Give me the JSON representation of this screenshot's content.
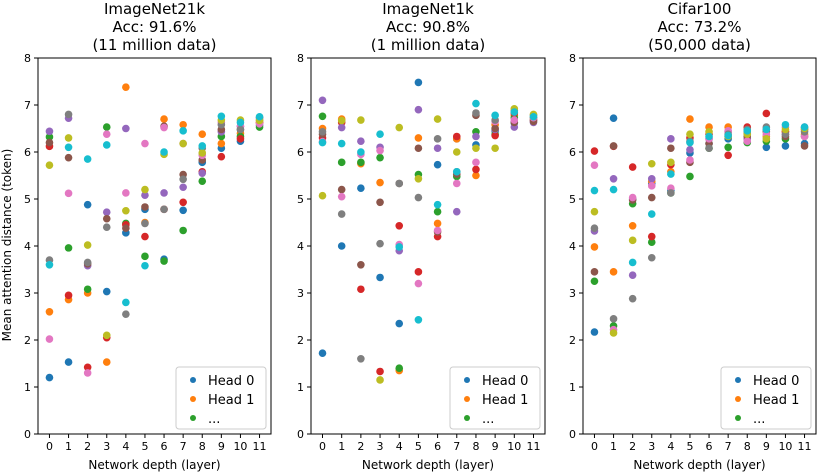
{
  "figure": {
    "ylabel": "Mean attention distance (token)"
  },
  "chart_data": [
    {
      "type": "scatter",
      "title": [
        "ImageNet21k",
        "Acc: 91.6%",
        "(11 million data)"
      ],
      "xlabel": "Network depth (layer)",
      "ylabel": "Mean attention distance (token)",
      "xlim": [
        -0.6,
        11.6
      ],
      "ylim": [
        0,
        8
      ],
      "xticks": [
        0,
        1,
        2,
        3,
        4,
        5,
        6,
        7,
        8,
        9,
        10,
        11
      ],
      "yticks": [
        0,
        1,
        2,
        3,
        4,
        5,
        6,
        7,
        8
      ],
      "legend": {
        "entries": [
          "Head 0",
          "Head 1",
          "..."
        ],
        "placement": "lower-right"
      },
      "series": [
        {
          "name": "Head 0",
          "color": "#1f77b4",
          "values": [
            1.2,
            1.53,
            4.88,
            3.03,
            4.28,
            4.78,
            3.72,
            4.76,
            5.78,
            6.08,
            6.23,
            6.57
          ]
        },
        {
          "name": "Head 1",
          "color": "#ff7f0e",
          "values": [
            2.6,
            2.86,
            3.0,
            1.53,
            7.38,
            4.5,
            6.7,
            6.58,
            6.38,
            6.18,
            6.4,
            6.62
          ]
        },
        {
          "name": "Head 2",
          "color": "#2ca02c",
          "values": [
            6.32,
            3.96,
            3.08,
            6.53,
            4.48,
            3.78,
            3.68,
            4.33,
            5.38,
            6.33,
            6.33,
            6.53
          ]
        },
        {
          "name": "Head 3",
          "color": "#d62728",
          "values": [
            6.12,
            2.95,
            1.42,
            2.05,
            4.45,
            4.2,
            4.78,
            4.93,
            5.58,
            5.9,
            6.28,
            6.63
          ]
        },
        {
          "name": "Head 4",
          "color": "#9467bd",
          "values": [
            6.44,
            6.72,
            3.58,
            4.72,
            6.5,
            5.08,
            5.13,
            5.25,
            5.55,
            6.43,
            6.55,
            6.73
          ]
        },
        {
          "name": "Head 5",
          "color": "#8c564b",
          "values": [
            6.2,
            5.88,
            3.62,
            4.58,
            4.38,
            4.83,
            6.55,
            5.52,
            5.83,
            6.48,
            6.48,
            6.68
          ]
        },
        {
          "name": "Head 6",
          "color": "#e377c2",
          "values": [
            2.02,
            5.12,
            1.3,
            6.38,
            5.13,
            6.18,
            6.52,
            6.18,
            5.93,
            6.63,
            6.55,
            6.6
          ]
        },
        {
          "name": "Head 7",
          "color": "#7f7f7f",
          "values": [
            3.7,
            6.8,
            3.65,
            4.4,
            2.55,
            4.48,
            4.78,
            5.42,
            6.08,
            6.58,
            6.48,
            6.73
          ]
        },
        {
          "name": "Head 8",
          "color": "#bcbd22",
          "values": [
            5.72,
            6.3,
            4.02,
            2.1,
            4.75,
            5.2,
            5.95,
            6.18,
            5.98,
            6.68,
            6.68,
            6.67
          ]
        },
        {
          "name": "Head 9",
          "color": "#17becf",
          "values": [
            3.6,
            6.1,
            5.85,
            6.15,
            2.8,
            3.58,
            6.0,
            6.45,
            6.13,
            6.76,
            6.63,
            6.75
          ]
        }
      ]
    },
    {
      "type": "scatter",
      "title": [
        "ImageNet1k",
        "Acc: 90.8%",
        "(1 million data)"
      ],
      "xlabel": "Network depth (layer)",
      "xlim": [
        -0.6,
        11.6
      ],
      "ylim": [
        0,
        8
      ],
      "xticks": [
        0,
        1,
        2,
        3,
        4,
        5,
        6,
        7,
        8,
        9,
        10,
        11
      ],
      "yticks": [
        0,
        1,
        2,
        3,
        4,
        5,
        6,
        7,
        8
      ],
      "legend": {
        "entries": [
          "Head 0",
          "Head 1",
          "..."
        ],
        "placement": "lower-right"
      },
      "series": [
        {
          "name": "Head 0",
          "color": "#1f77b4",
          "values": [
            1.72,
            4.0,
            5.23,
            3.33,
            2.35,
            7.48,
            5.73,
            6.28,
            6.15,
            6.45,
            6.62,
            6.68
          ]
        },
        {
          "name": "Head 1",
          "color": "#ff7f0e",
          "values": [
            6.5,
            6.7,
            5.75,
            5.35,
            1.35,
            6.3,
            4.48,
            6.28,
            5.5,
            6.58,
            6.78,
            6.73
          ]
        },
        {
          "name": "Head 2",
          "color": "#2ca02c",
          "values": [
            6.76,
            5.78,
            5.78,
            5.88,
            1.4,
            5.52,
            4.73,
            5.48,
            6.43,
            6.38,
            6.73,
            6.73
          ]
        },
        {
          "name": "Head 3",
          "color": "#d62728",
          "values": [
            6.3,
            6.63,
            3.08,
            1.33,
            4.43,
            3.45,
            4.2,
            6.33,
            5.63,
            6.35,
            6.83,
            6.68
          ]
        },
        {
          "name": "Head 4",
          "color": "#9467bd",
          "values": [
            7.1,
            6.52,
            6.23,
            6.1,
            3.9,
            6.9,
            6.08,
            4.73,
            6.33,
            6.48,
            6.53,
            6.63
          ]
        },
        {
          "name": "Head 5",
          "color": "#8c564b",
          "values": [
            6.38,
            5.2,
            3.6,
            4.93,
            5.33,
            6.08,
            4.3,
            5.53,
            6.78,
            6.5,
            6.63,
            6.65
          ]
        },
        {
          "name": "Head 6",
          "color": "#e377c2",
          "values": [
            6.22,
            5.05,
            5.95,
            6.03,
            4.03,
            3.2,
            4.33,
            5.33,
            5.78,
            6.65,
            6.68,
            6.73
          ]
        },
        {
          "name": "Head 7",
          "color": "#7f7f7f",
          "values": [
            6.43,
            4.68,
            1.6,
            4.05,
            5.33,
            5.03,
            6.28,
            5.58,
            6.83,
            6.68,
            6.88,
            6.78
          ]
        },
        {
          "name": "Head 8",
          "color": "#bcbd22",
          "values": [
            5.07,
            6.67,
            6.68,
            1.15,
            6.52,
            5.43,
            6.7,
            6.0,
            6.08,
            6.08,
            6.92,
            6.8
          ]
        },
        {
          "name": "Head 9",
          "color": "#17becf",
          "values": [
            6.2,
            6.18,
            6.0,
            6.38,
            3.98,
            2.43,
            4.88,
            5.58,
            7.03,
            6.78,
            6.85,
            6.75
          ]
        }
      ]
    },
    {
      "type": "scatter",
      "title": [
        "Cifar100",
        "Acc: 73.2%",
        "(50,000 data)"
      ],
      "xlabel": "Network depth (layer)",
      "xlim": [
        -0.6,
        11.6
      ],
      "ylim": [
        0,
        8
      ],
      "xticks": [
        0,
        1,
        2,
        3,
        4,
        5,
        6,
        7,
        8,
        9,
        10,
        11
      ],
      "yticks": [
        0,
        1,
        2,
        3,
        4,
        5,
        6,
        7,
        8
      ],
      "legend": {
        "entries": [
          "Head 0",
          "Head 1",
          "..."
        ],
        "placement": "lower-right"
      },
      "series": [
        {
          "name": "Head 0",
          "color": "#1f77b4",
          "values": [
            2.17,
            6.72,
            5.0,
            5.33,
            5.18,
            5.98,
            6.18,
            6.28,
            6.4,
            6.1,
            6.13,
            6.18
          ]
        },
        {
          "name": "Head 1",
          "color": "#ff7f0e",
          "values": [
            3.98,
            3.45,
            4.43,
            5.38,
            5.58,
            6.7,
            6.53,
            6.53,
            6.43,
            6.33,
            6.43,
            6.38
          ]
        },
        {
          "name": "Head 2",
          "color": "#2ca02c",
          "values": [
            3.25,
            2.3,
            4.9,
            4.08,
            5.13,
            5.48,
            6.08,
            6.1,
            6.2,
            6.23,
            6.28,
            6.33
          ]
        },
        {
          "name": "Head 3",
          "color": "#d62728",
          "values": [
            6.02,
            6.12,
            5.68,
            4.2,
            5.73,
            6.3,
            6.38,
            5.93,
            6.53,
            6.82,
            6.43,
            6.48
          ]
        },
        {
          "name": "Head 4",
          "color": "#9467bd",
          "values": [
            4.32,
            5.43,
            3.38,
            5.43,
            6.28,
            6.05,
            6.28,
            6.43,
            6.28,
            6.48,
            6.38,
            6.53
          ]
        },
        {
          "name": "Head 5",
          "color": "#8c564b",
          "values": [
            3.45,
            6.13,
            4.98,
            5.03,
            6.08,
            5.78,
            6.18,
            6.33,
            6.33,
            6.43,
            6.33,
            6.13
          ]
        },
        {
          "name": "Head 6",
          "color": "#e377c2",
          "values": [
            5.72,
            2.22,
            5.03,
            5.28,
            5.23,
            5.83,
            6.28,
            6.45,
            6.23,
            6.38,
            6.53,
            6.33
          ]
        },
        {
          "name": "Head 7",
          "color": "#7f7f7f",
          "values": [
            4.38,
            2.45,
            2.88,
            3.75,
            5.13,
            6.23,
            6.08,
            6.38,
            6.48,
            6.53,
            6.38,
            6.43
          ]
        },
        {
          "name": "Head 8",
          "color": "#bcbd22",
          "values": [
            4.73,
            2.15,
            4.12,
            5.75,
            5.78,
            6.38,
            6.43,
            6.33,
            6.38,
            6.28,
            6.48,
            6.5
          ]
        },
        {
          "name": "Head 9",
          "color": "#17becf",
          "values": [
            5.18,
            5.2,
            3.65,
            4.68,
            5.53,
            6.2,
            6.33,
            6.35,
            6.45,
            6.48,
            6.58,
            6.53
          ]
        }
      ]
    }
  ]
}
